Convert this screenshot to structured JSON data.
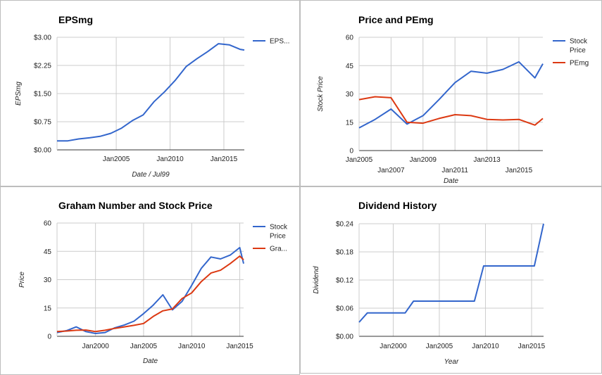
{
  "chart_data": [
    {
      "type": "line",
      "title": "EPSmg",
      "xlabel": "Date / Jul99",
      "ylabel": "EPSmg",
      "x_ticks": [
        {
          "label": "Jan2005",
          "x": 2005
        },
        {
          "label": "Jan2010",
          "x": 2010
        },
        {
          "label": "Jan2015",
          "x": 2015
        }
      ],
      "y_ticks": [
        {
          "label": "$0.00",
          "y": 0
        },
        {
          "label": "$0.75",
          "y": 0.75
        },
        {
          "label": "$1.50",
          "y": 1.5
        },
        {
          "label": "$2.25",
          "y": 2.25
        },
        {
          "label": "$3.00",
          "y": 3.0
        }
      ],
      "xlim": [
        1999.5,
        2016.9
      ],
      "ylim": [
        0,
        3.0
      ],
      "grid": true,
      "legend_position": "right",
      "series": [
        {
          "name": "EPS...",
          "color": "#3366cc",
          "x": [
            1999.5,
            2000.5,
            2001.5,
            2002.5,
            2003.5,
            2004.5,
            2005.5,
            2006.5,
            2007.5,
            2008.5,
            2009.5,
            2010.5,
            2011.5,
            2012.5,
            2013.5,
            2014.5,
            2015.5,
            2016.5,
            2016.9
          ],
          "y": [
            0.24,
            0.24,
            0.29,
            0.32,
            0.36,
            0.44,
            0.58,
            0.78,
            0.93,
            1.28,
            1.55,
            1.86,
            2.22,
            2.43,
            2.62,
            2.83,
            2.8,
            2.68,
            2.66
          ]
        }
      ]
    },
    {
      "type": "line",
      "title": "Price and PEmg",
      "xlabel": "Date",
      "ylabel": "Stock Price",
      "x_ticks": [
        {
          "label": "Jan2005",
          "x": 2005
        },
        {
          "label": "Jan2007",
          "x": 2007
        },
        {
          "label": "Jan2009",
          "x": 2009
        },
        {
          "label": "Jan2011",
          "x": 2011
        },
        {
          "label": "Jan2013",
          "x": 2013
        },
        {
          "label": "Jan2015",
          "x": 2015
        }
      ],
      "y_ticks": [
        {
          "label": "0",
          "y": 0
        },
        {
          "label": "15",
          "y": 15
        },
        {
          "label": "30",
          "y": 30
        },
        {
          "label": "45",
          "y": 45
        },
        {
          "label": "60",
          "y": 60
        }
      ],
      "xlim": [
        2005,
        2016.5
      ],
      "ylim": [
        0,
        60
      ],
      "grid": true,
      "legend_position": "right",
      "series": [
        {
          "name": "Stock Price",
          "color": "#3366cc",
          "x": [
            2005,
            2006,
            2007,
            2008,
            2009,
            2010,
            2011,
            2012,
            2013,
            2014,
            2015,
            2016,
            2016.5
          ],
          "y": [
            12,
            16.5,
            22,
            14,
            18.5,
            27,
            36,
            42,
            41,
            43,
            47,
            38.5,
            46
          ]
        },
        {
          "name": "PEmg",
          "color": "#dc3912",
          "x": [
            2005,
            2006,
            2007,
            2008,
            2009,
            2010,
            2011,
            2012,
            2013,
            2014,
            2015,
            2016,
            2016.5
          ],
          "y": [
            27,
            28.5,
            28,
            15,
            14.5,
            17,
            19,
            18.5,
            16.5,
            16.2,
            16.5,
            13.5,
            17
          ]
        }
      ]
    },
    {
      "type": "line",
      "title": "Graham Number and Stock Price",
      "xlabel": "Date",
      "ylabel": "Price",
      "x_ticks": [
        {
          "label": "Jan2000",
          "x": 2000
        },
        {
          "label": "Jan2005",
          "x": 2005
        },
        {
          "label": "Jan2010",
          "x": 2010
        },
        {
          "label": "Jan2015",
          "x": 2015
        }
      ],
      "y_ticks": [
        {
          "label": "0",
          "y": 0
        },
        {
          "label": "15",
          "y": 15
        },
        {
          "label": "30",
          "y": 30
        },
        {
          "label": "45",
          "y": 45
        },
        {
          "label": "60",
          "y": 60
        }
      ],
      "xlim": [
        1996,
        2015.4
      ],
      "ylim": [
        0,
        60
      ],
      "grid": true,
      "legend_position": "right",
      "series": [
        {
          "name": "Stock Price",
          "color": "#3366cc",
          "x": [
            1996,
            1997,
            1998,
            1999,
            2000,
            2001,
            2002,
            2003,
            2004,
            2005,
            2006,
            2007,
            2008,
            2009,
            2010,
            2011,
            2012,
            2013,
            2014,
            2015,
            2015.4
          ],
          "y": [
            2,
            3,
            5,
            2.5,
            1.5,
            2,
            4.5,
            6,
            8,
            12,
            16.5,
            22,
            14,
            18.5,
            27,
            36,
            42,
            41,
            43,
            47,
            38.5
          ]
        },
        {
          "name": "Gra...",
          "color": "#dc3912",
          "x": [
            1996,
            1997,
            1998,
            1999,
            2000,
            2001,
            2002,
            2003,
            2004,
            2005,
            2006,
            2007,
            2008,
            2009,
            2010,
            2011,
            2012,
            2013,
            2014,
            2015,
            2015.4
          ],
          "y": [
            2.5,
            2.8,
            3.2,
            3.3,
            2.5,
            3.2,
            4.2,
            5,
            5.8,
            6.8,
            10.5,
            13.5,
            14.5,
            20,
            23,
            29,
            33.5,
            35,
            38.5,
            42.5,
            40.5
          ]
        }
      ]
    },
    {
      "type": "line",
      "title": "Dividend History",
      "xlabel": "Year",
      "ylabel": "Dividend",
      "x_ticks": [
        {
          "label": "Jan2000",
          "x": 2000
        },
        {
          "label": "Jan2005",
          "x": 2005
        },
        {
          "label": "Jan2010",
          "x": 2010
        },
        {
          "label": "Jan2015",
          "x": 2015
        }
      ],
      "y_ticks": [
        {
          "label": "$0.00",
          "y": 0
        },
        {
          "label": "$0.06",
          "y": 0.06
        },
        {
          "label": "$0.12",
          "y": 0.12
        },
        {
          "label": "$0.18",
          "y": 0.18
        },
        {
          "label": "$0.24",
          "y": 0.24
        }
      ],
      "xlim": [
        1996.3,
        2016.3
      ],
      "ylim": [
        0,
        0.24
      ],
      "grid": true,
      "legend_position": "none",
      "series": [
        {
          "color": "#3366cc",
          "x": [
            1996.3,
            1997.2,
            2001.3,
            2002.2,
            2008.8,
            2009.8,
            2015.3,
            2016.3
          ],
          "y": [
            0.03,
            0.05,
            0.05,
            0.075,
            0.075,
            0.15,
            0.15,
            0.24
          ]
        }
      ]
    }
  ]
}
